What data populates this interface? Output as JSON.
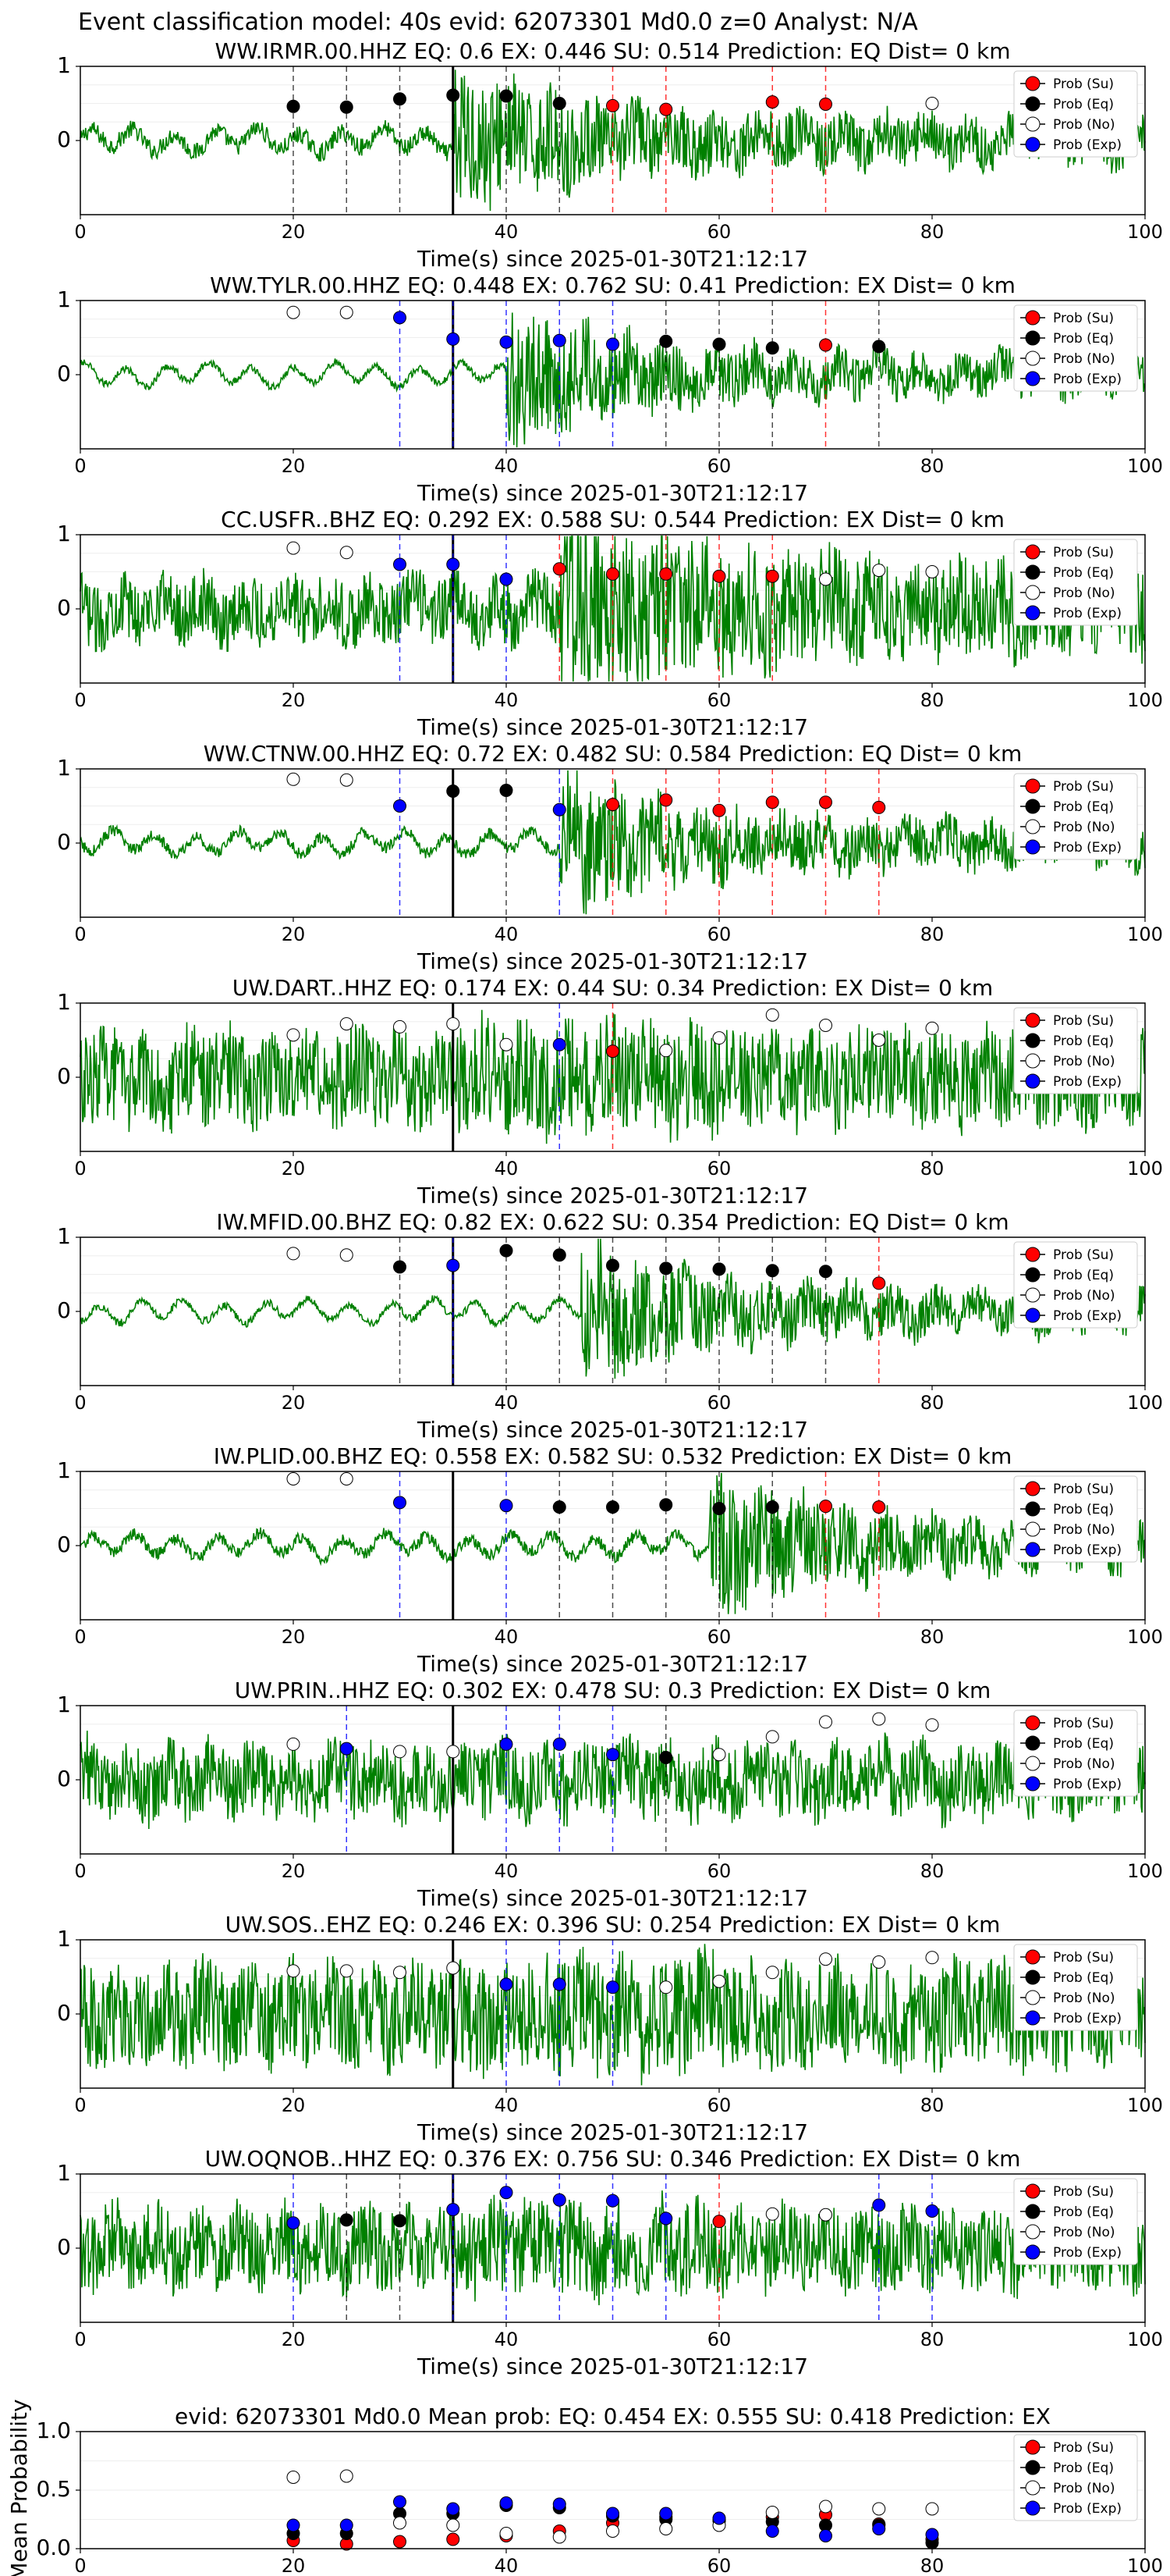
{
  "figure_title": "Event classification model: 40s evid: 62073301 Md0.0 z=0 Analyst: N/A",
  "xlabel": "Time(s) since 2025-01-30T21:12:17",
  "legend": [
    "Prob (Su)",
    "Prob (Eq)",
    "Prob (No)",
    "Prob (Exp)"
  ],
  "colors": {
    "su": "#ff0000",
    "eq": "#000000",
    "no": "#ffffff",
    "exp": "#0000ff",
    "waveform": "#008000"
  },
  "chart_data": [
    {
      "type": "line",
      "title": "WW.IRMR.00.HHZ   EQ: 0.6  EX: 0.446  SU: 0.514   Prediction: EQ    Dist= 0 km",
      "xlim": [
        0,
        100
      ],
      "ylim": [
        -1,
        1
      ],
      "xticks": [
        0,
        20,
        40,
        60,
        80,
        100
      ],
      "yticks": [
        0,
        1
      ],
      "noise": 0.12,
      "event": true,
      "onset": 35,
      "points": [
        [
          20,
          "eq",
          0.46
        ],
        [
          25,
          "eq",
          0.45
        ],
        [
          30,
          "eq",
          0.56
        ],
        [
          35,
          "eq",
          0.61
        ],
        [
          40,
          "eq",
          0.6
        ],
        [
          45,
          "eq",
          0.5
        ],
        [
          50,
          "su",
          0.47
        ],
        [
          55,
          "su",
          0.42
        ],
        [
          65,
          "su",
          0.52
        ],
        [
          70,
          "su",
          0.49
        ],
        [
          80,
          "no",
          0.5
        ]
      ]
    },
    {
      "type": "line",
      "title": "WW.TYLR.00.HHZ   EQ: 0.448  EX: 0.762  SU: 0.41   Prediction: EX    Dist= 0 km",
      "xlim": [
        0,
        100
      ],
      "ylim": [
        -1,
        1
      ],
      "xticks": [
        0,
        20,
        40,
        60,
        80,
        100
      ],
      "yticks": [
        0,
        1
      ],
      "noise": 0.05,
      "event": true,
      "onset": 40,
      "points": [
        [
          20,
          "no",
          0.84
        ],
        [
          25,
          "no",
          0.84
        ],
        [
          30,
          "exp",
          0.77
        ],
        [
          35,
          "exp",
          0.48
        ],
        [
          40,
          "exp",
          0.44
        ],
        [
          45,
          "exp",
          0.46
        ],
        [
          50,
          "exp",
          0.41
        ],
        [
          55,
          "eq",
          0.45
        ],
        [
          60,
          "eq",
          0.41
        ],
        [
          65,
          "eq",
          0.36
        ],
        [
          70,
          "su",
          0.4
        ],
        [
          75,
          "eq",
          0.38
        ]
      ]
    },
    {
      "type": "line",
      "title": "CC.USFR..BHZ   EQ: 0.292  EX: 0.588  SU: 0.544   Prediction: EX    Dist= 0 km",
      "xlim": [
        0,
        100
      ],
      "ylim": [
        -1,
        1
      ],
      "xticks": [
        0,
        20,
        40,
        60,
        80,
        100
      ],
      "yticks": [
        0,
        1
      ],
      "noise": 0.45,
      "event": true,
      "onset": 45,
      "points": [
        [
          20,
          "no",
          0.82
        ],
        [
          25,
          "no",
          0.76
        ],
        [
          30,
          "exp",
          0.6
        ],
        [
          35,
          "exp",
          0.6
        ],
        [
          40,
          "exp",
          0.4
        ],
        [
          45,
          "su",
          0.54
        ],
        [
          50,
          "su",
          0.47
        ],
        [
          55,
          "su",
          0.47
        ],
        [
          60,
          "su",
          0.44
        ],
        [
          65,
          "su",
          0.44
        ],
        [
          70,
          "no",
          0.4
        ],
        [
          75,
          "no",
          0.52
        ],
        [
          80,
          "no",
          0.5
        ]
      ]
    },
    {
      "type": "line",
      "title": "WW.CTNW.00.HHZ   EQ: 0.72  EX: 0.482  SU: 0.584   Prediction: EQ    Dist= 0 km",
      "xlim": [
        0,
        100
      ],
      "ylim": [
        -1,
        1
      ],
      "xticks": [
        0,
        20,
        40,
        60,
        80,
        100
      ],
      "yticks": [
        0,
        1
      ],
      "noise": 0.08,
      "event": true,
      "onset": 45,
      "points": [
        [
          20,
          "no",
          0.86
        ],
        [
          25,
          "no",
          0.85
        ],
        [
          30,
          "exp",
          0.5
        ],
        [
          35,
          "eq",
          0.7
        ],
        [
          40,
          "eq",
          0.71
        ],
        [
          45,
          "exp",
          0.45
        ],
        [
          50,
          "su",
          0.52
        ],
        [
          55,
          "su",
          0.58
        ],
        [
          60,
          "su",
          0.44
        ],
        [
          65,
          "su",
          0.55
        ],
        [
          70,
          "su",
          0.55
        ],
        [
          75,
          "su",
          0.48
        ]
      ]
    },
    {
      "type": "line",
      "title": "UW.DART..HHZ   EQ: 0.174  EX: 0.44  SU: 0.34   Prediction: EX    Dist= 0 km",
      "xlim": [
        0,
        100
      ],
      "ylim": [
        -1,
        1
      ],
      "xticks": [
        0,
        20,
        40,
        60,
        80,
        100
      ],
      "yticks": [
        0,
        1
      ],
      "noise": 0.65,
      "event": false,
      "onset": 45,
      "points": [
        [
          20,
          "no",
          0.57
        ],
        [
          25,
          "no",
          0.72
        ],
        [
          30,
          "no",
          0.68
        ],
        [
          35,
          "no",
          0.72
        ],
        [
          40,
          "no",
          0.44
        ],
        [
          45,
          "exp",
          0.44
        ],
        [
          50,
          "su",
          0.35
        ],
        [
          55,
          "no",
          0.36
        ],
        [
          60,
          "no",
          0.53
        ],
        [
          65,
          "no",
          0.84
        ],
        [
          70,
          "no",
          0.7
        ],
        [
          75,
          "no",
          0.5
        ],
        [
          80,
          "no",
          0.66
        ]
      ]
    },
    {
      "type": "line",
      "title": "IW.MFID.00.BHZ   EQ: 0.82  EX: 0.622  SU: 0.354   Prediction: EQ    Dist= 0 km",
      "xlim": [
        0,
        100
      ],
      "ylim": [
        -1,
        1
      ],
      "xticks": [
        0,
        20,
        40,
        60,
        80,
        100
      ],
      "yticks": [
        0,
        1
      ],
      "noise": 0.05,
      "event": true,
      "onset": 47,
      "points": [
        [
          20,
          "no",
          0.78
        ],
        [
          25,
          "no",
          0.76
        ],
        [
          30,
          "eq",
          0.6
        ],
        [
          35,
          "exp",
          0.62
        ],
        [
          40,
          "eq",
          0.82
        ],
        [
          45,
          "eq",
          0.76
        ],
        [
          50,
          "eq",
          0.62
        ],
        [
          55,
          "eq",
          0.58
        ],
        [
          60,
          "eq",
          0.57
        ],
        [
          65,
          "eq",
          0.55
        ],
        [
          70,
          "eq",
          0.54
        ],
        [
          75,
          "su",
          0.38
        ]
      ]
    },
    {
      "type": "line",
      "title": "IW.PLID.00.BHZ   EQ: 0.558  EX: 0.582  SU: 0.532   Prediction: EX    Dist= 0 km",
      "xlim": [
        0,
        100
      ],
      "ylim": [
        -1,
        1
      ],
      "xticks": [
        0,
        20,
        40,
        60,
        80,
        100
      ],
      "yticks": [
        0,
        1
      ],
      "noise": 0.08,
      "event": true,
      "onset": 59,
      "points": [
        [
          20,
          "no",
          0.9
        ],
        [
          25,
          "no",
          0.9
        ],
        [
          30,
          "exp",
          0.58
        ],
        [
          40,
          "exp",
          0.54
        ],
        [
          45,
          "eq",
          0.52
        ],
        [
          50,
          "eq",
          0.52
        ],
        [
          55,
          "eq",
          0.55
        ],
        [
          60,
          "eq",
          0.5
        ],
        [
          65,
          "eq",
          0.52
        ],
        [
          70,
          "su",
          0.53
        ],
        [
          75,
          "su",
          0.52
        ]
      ]
    },
    {
      "type": "line",
      "title": "UW.PRIN..HHZ   EQ: 0.302  EX: 0.478  SU: 0.3   Prediction: EX    Dist= 0 km",
      "xlim": [
        0,
        100
      ],
      "ylim": [
        -1,
        1
      ],
      "xticks": [
        0,
        20,
        40,
        60,
        80,
        100
      ],
      "yticks": [
        0,
        1
      ],
      "noise": 0.5,
      "event": false,
      "onset": 45,
      "points": [
        [
          20,
          "no",
          0.48
        ],
        [
          25,
          "exp",
          0.42
        ],
        [
          30,
          "no",
          0.38
        ],
        [
          35,
          "no",
          0.38
        ],
        [
          40,
          "exp",
          0.48
        ],
        [
          45,
          "exp",
          0.48
        ],
        [
          50,
          "exp",
          0.34
        ],
        [
          55,
          "eq",
          0.3
        ],
        [
          60,
          "no",
          0.34
        ],
        [
          65,
          "no",
          0.58
        ],
        [
          70,
          "no",
          0.78
        ],
        [
          75,
          "no",
          0.82
        ],
        [
          80,
          "no",
          0.74
        ]
      ]
    },
    {
      "type": "line",
      "title": "UW.SOS..EHZ   EQ: 0.246  EX: 0.396  SU: 0.254   Prediction: EX    Dist= 0 km",
      "xlim": [
        0,
        100
      ],
      "ylim": [
        -1,
        1
      ],
      "xticks": [
        0,
        20,
        40,
        60,
        80,
        100
      ],
      "yticks": [
        0,
        1
      ],
      "noise": 0.7,
      "event": false,
      "onset": 45,
      "points": [
        [
          20,
          "no",
          0.58
        ],
        [
          25,
          "no",
          0.58
        ],
        [
          30,
          "no",
          0.56
        ],
        [
          35,
          "no",
          0.62
        ],
        [
          40,
          "exp",
          0.4
        ],
        [
          45,
          "exp",
          0.4
        ],
        [
          50,
          "exp",
          0.36
        ],
        [
          55,
          "no",
          0.36
        ],
        [
          60,
          "no",
          0.44
        ],
        [
          65,
          "no",
          0.56
        ],
        [
          70,
          "no",
          0.74
        ],
        [
          75,
          "no",
          0.7
        ],
        [
          80,
          "no",
          0.76
        ]
      ]
    },
    {
      "type": "line",
      "title": "UW.OQNOB..HHZ   EQ: 0.376  EX: 0.756  SU: 0.346   Prediction: EX    Dist= 0 km",
      "xlim": [
        0,
        100
      ],
      "ylim": [
        -1,
        1
      ],
      "xticks": [
        0,
        20,
        40,
        60,
        80,
        100
      ],
      "yticks": [
        0,
        1
      ],
      "noise": 0.55,
      "event": false,
      "onset": 45,
      "points": [
        [
          20,
          "exp",
          0.34
        ],
        [
          25,
          "eq",
          0.38
        ],
        [
          30,
          "eq",
          0.37
        ],
        [
          35,
          "exp",
          0.52
        ],
        [
          40,
          "exp",
          0.75
        ],
        [
          45,
          "exp",
          0.65
        ],
        [
          50,
          "exp",
          0.64
        ],
        [
          55,
          "exp",
          0.4
        ],
        [
          60,
          "su",
          0.36
        ],
        [
          65,
          "no",
          0.46
        ],
        [
          70,
          "no",
          0.45
        ],
        [
          75,
          "exp",
          0.58
        ],
        [
          80,
          "exp",
          0.5
        ]
      ]
    },
    {
      "type": "scatter",
      "title": "evid: 62073301  Md0.0   Mean prob:   EQ: 0.454  EX: 0.555  SU: 0.418   Prediction: EX",
      "xlim": [
        0,
        100
      ],
      "ylim": [
        0,
        1
      ],
      "xticks": [
        0,
        20,
        40,
        60,
        80,
        100
      ],
      "yticks": [
        0.0,
        0.5,
        1.0
      ],
      "ylabel": "Mean Probability",
      "x": [
        20,
        25,
        30,
        35,
        40,
        45,
        50,
        55,
        60,
        65,
        70,
        75,
        80
      ],
      "series": [
        {
          "name": "Prob (Su)",
          "key": "su",
          "values": [
            0.07,
            0.04,
            0.06,
            0.08,
            0.11,
            0.15,
            0.22,
            0.27,
            0.24,
            0.27,
            0.29,
            0.21,
            0.08
          ]
        },
        {
          "name": "Prob (Eq)",
          "key": "eq",
          "values": [
            0.13,
            0.13,
            0.3,
            0.3,
            0.37,
            0.35,
            0.28,
            0.25,
            0.24,
            0.23,
            0.2,
            0.2,
            0.05
          ]
        },
        {
          "name": "Prob (No)",
          "key": "no",
          "values": [
            0.61,
            0.62,
            0.22,
            0.2,
            0.13,
            0.1,
            0.15,
            0.17,
            0.2,
            0.31,
            0.36,
            0.34,
            0.34
          ]
        },
        {
          "name": "Prob (Exp)",
          "key": "exp",
          "values": [
            0.2,
            0.2,
            0.4,
            0.34,
            0.39,
            0.38,
            0.3,
            0.3,
            0.26,
            0.15,
            0.11,
            0.17,
            0.12
          ]
        }
      ]
    }
  ]
}
